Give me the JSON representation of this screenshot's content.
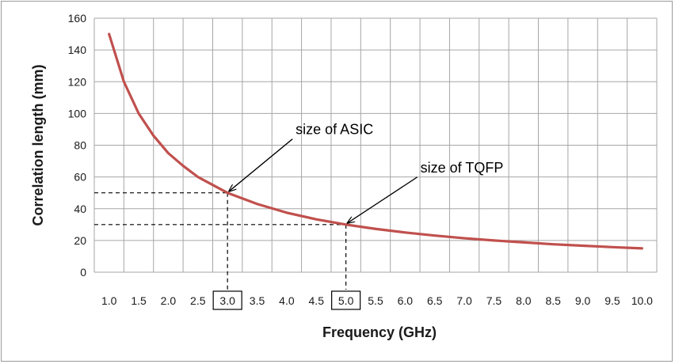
{
  "chart_data": {
    "type": "line",
    "title": "",
    "xlabel": "Frequency (GHz)",
    "ylabel": "Correlation length  (mm)",
    "xlim": [
      1.0,
      10.0
    ],
    "ylim": [
      0,
      160
    ],
    "x_ticks": [
      "1.0",
      "1.5",
      "2.0",
      "2.5",
      "3.0",
      "3.5",
      "4.0",
      "4.5",
      "5.0",
      "5.5",
      "6.0",
      "6.5",
      "7.0",
      "7.5",
      "8.0",
      "8.5",
      "9.0",
      "9.5",
      "10.0"
    ],
    "y_ticks": [
      "0",
      "20",
      "40",
      "60",
      "80",
      "100",
      "120",
      "140",
      "160"
    ],
    "boxed_x_ticks": [
      "3.0",
      "5.0"
    ],
    "grid": true,
    "series": [
      {
        "color": "#c0504d",
        "x": [
          1.0,
          1.25,
          1.5,
          1.75,
          2.0,
          2.25,
          2.5,
          2.75,
          3.0,
          3.5,
          4.0,
          4.5,
          5.0,
          5.5,
          6.0,
          6.5,
          7.0,
          7.5,
          8.0,
          8.5,
          9.0,
          9.5,
          10.0
        ],
        "y": [
          150,
          120,
          100,
          86,
          75,
          67,
          60,
          55,
          50,
          43,
          37.5,
          33.3,
          30,
          27.3,
          25,
          23.1,
          21.4,
          20,
          18.8,
          17.6,
          16.7,
          15.8,
          15
        ]
      }
    ],
    "annotations": [
      {
        "text": "size of ASIC",
        "x": 3.0,
        "y": 50
      },
      {
        "text": "size of TQFP",
        "x": 5.0,
        "y": 30
      }
    ]
  }
}
